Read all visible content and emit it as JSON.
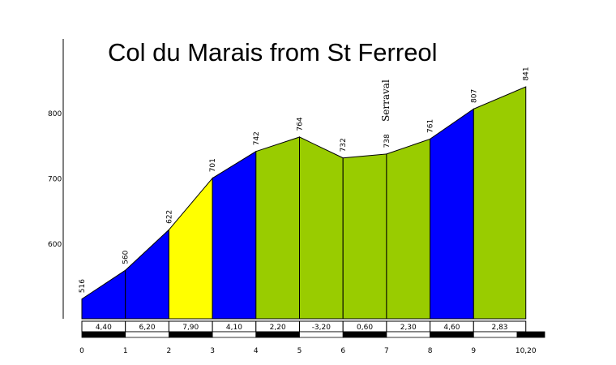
{
  "chart_data": {
    "type": "area",
    "title": "Col du Marais from St Ferreol",
    "xlabel": "",
    "ylabel": "",
    "y_ticks": [
      600,
      700,
      800
    ],
    "y_tick_labels": [
      "600",
      "700",
      "800"
    ],
    "ylim": [
      490,
      860
    ],
    "xlim": [
      0,
      10.2
    ],
    "x_tick_labels": [
      "0",
      "1",
      "2",
      "3",
      "4",
      "5",
      "6",
      "7",
      "8",
      "9",
      "10,20"
    ],
    "points": [
      {
        "x": 0,
        "elevation": 516,
        "label": "516"
      },
      {
        "x": 1,
        "elevation": 560,
        "label": "560"
      },
      {
        "x": 2,
        "elevation": 622,
        "label": "622"
      },
      {
        "x": 3,
        "elevation": 701,
        "label": "701"
      },
      {
        "x": 4,
        "elevation": 742,
        "label": "742"
      },
      {
        "x": 5,
        "elevation": 764,
        "label": "764"
      },
      {
        "x": 6,
        "elevation": 732,
        "label": "732"
      },
      {
        "x": 7,
        "elevation": 738,
        "label": "738"
      },
      {
        "x": 8,
        "elevation": 761,
        "label": "761"
      },
      {
        "x": 9,
        "elevation": 807,
        "label": "807"
      },
      {
        "x": 10.2,
        "elevation": 841,
        "label": "841"
      }
    ],
    "segments": [
      {
        "gradient": "4,40",
        "color": "#0000ff"
      },
      {
        "gradient": "6,20",
        "color": "#0000ff"
      },
      {
        "gradient": "7,90",
        "color": "#ffff00"
      },
      {
        "gradient": "4,10",
        "color": "#0000ff"
      },
      {
        "gradient": "2,20",
        "color": "#99cc00"
      },
      {
        "gradient": "-3,20",
        "color": "#99cc00"
      },
      {
        "gradient": "0,60",
        "color": "#99cc00"
      },
      {
        "gradient": "2,30",
        "color": "#99cc00"
      },
      {
        "gradient": "4,60",
        "color": "#0000ff"
      },
      {
        "gradient": "2,83",
        "color": "#99cc00"
      }
    ],
    "place_labels": [
      {
        "x": 7,
        "text": "Serraval"
      }
    ]
  }
}
